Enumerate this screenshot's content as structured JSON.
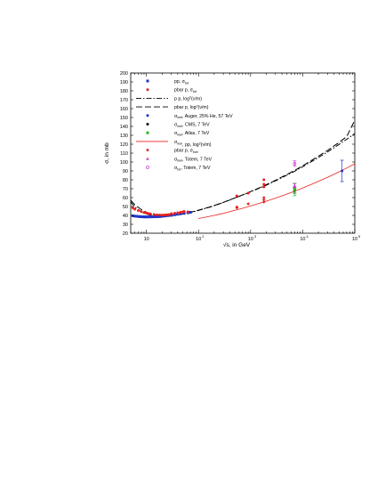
{
  "chart_data": {
    "type": "scatter",
    "xlabel": "√s, in GeV",
    "ylabel": "σ, in mb",
    "x_scale": "log",
    "xlim": [
      5,
      100000
    ],
    "ylim": [
      20,
      200
    ],
    "x_ticks": [
      {
        "value": 10,
        "label": "10"
      },
      {
        "value": 100,
        "label": "10"
      },
      {
        "value": 1000,
        "label": "10"
      },
      {
        "value": 10000,
        "label": "10"
      },
      {
        "value": 100000,
        "label": "10"
      }
    ],
    "x_tick_exponents": [
      "",
      "2",
      "3",
      "4",
      "5"
    ],
    "y_ticks": [
      20,
      30,
      40,
      50,
      60,
      70,
      80,
      90,
      100,
      110,
      120,
      130,
      140,
      150,
      160,
      170,
      180,
      190,
      200
    ],
    "grid": false,
    "legend_position": "top-left",
    "legend": [
      {
        "label": "pp,      σ",
        "sub": "tot",
        "color": "#1f35c9",
        "marker": "square"
      },
      {
        "label": "pbar p, σ",
        "sub": "tot",
        "color": "#e8201c",
        "marker": "circle"
      },
      {
        "label": "p p,      log",
        "sup": "2",
        "tail": "(ν/m)",
        "color": "#000000",
        "marker": "dashdot"
      },
      {
        "label": "pbar p, log",
        "sup": "2",
        "tail": "(ν/m)",
        "color": "#000000",
        "marker": "dash"
      },
      {
        "label": "σ",
        "sub": "inel",
        "tail": ", Auger, 25% He, 57 TeV",
        "color": "#1f35c9",
        "marker": "circle"
      },
      {
        "label": "σ",
        "sub": "inel",
        "tail": ", CMS,   7 TeV",
        "color": "#000000",
        "marker": "circle"
      },
      {
        "label": "σ",
        "sub": "inel",
        "tail": ", Atlas,   7 TeV",
        "color": "#22bb22",
        "marker": "square"
      },
      {
        "label": "σ",
        "sub": "inel",
        "tail": ", pp, log",
        "sup": "2",
        "tail2": "(ν/m)",
        "color": "#e8201c",
        "marker": "line"
      },
      {
        "label": "pbar p, σ",
        "sub": "inel",
        "color": "#e8201c",
        "marker": "diamond"
      },
      {
        "label": "σ",
        "sub": "inel",
        "tail": ", Totem, 7 TeV",
        "color": "#d13ad1",
        "marker": "triangle"
      },
      {
        "label": "σ",
        "sub": "tot",
        "tail": ", Totem, 7 TeV",
        "color": "#d13ad1",
        "marker": "circle-open"
      }
    ],
    "series": [
      {
        "name": "pp, σtot",
        "color": "#1f35c9",
        "marker": "square",
        "x": [
          5.5,
          6,
          6.5,
          7,
          7.5,
          8,
          8.5,
          9,
          9.5,
          10,
          11,
          12,
          13,
          14,
          15,
          16,
          17,
          18,
          19,
          20,
          21.7,
          23.5,
          26,
          27.4,
          30.6,
          35,
          38.5,
          44.7,
          52.8,
          62.5,
          70
        ],
        "y": [
          39.5,
          39.2,
          39.0,
          38.8,
          38.6,
          38.5,
          38.4,
          38.4,
          38.3,
          38.3,
          38.3,
          38.4,
          38.4,
          38.5,
          38.5,
          38.6,
          38.7,
          38.8,
          38.9,
          39.0,
          39.3,
          39.5,
          39.8,
          40.0,
          40.1,
          40.8,
          41.2,
          41.7,
          42.3,
          43.0,
          43.5
        ]
      },
      {
        "name": "pbar p, σtot",
        "color": "#e8201c",
        "marker": "circle",
        "x": [
          5.5,
          6,
          7,
          8,
          9,
          10,
          11,
          12,
          14,
          16,
          18,
          20,
          22,
          24,
          26,
          28,
          30.4,
          35,
          40,
          45,
          50,
          53,
          62.5,
          546,
          900,
          1800,
          1800,
          1800
        ],
        "y": [
          48.5,
          47.0,
          45.5,
          44.2,
          43.3,
          42.6,
          42.0,
          41.6,
          41.0,
          40.6,
          40.5,
          40.4,
          40.5,
          40.6,
          40.8,
          41.0,
          42.0,
          42.5,
          43.0,
          43.5,
          44.0,
          44.5,
          44.0,
          62.0,
          65.0,
          72.0,
          75.0,
          80.0
        ]
      },
      {
        "name": "pbar p, σinel",
        "color": "#e8201c",
        "marker": "diamond",
        "x": [
          546,
          546,
          900,
          1800,
          1800,
          1800
        ],
        "y": [
          48.5,
          49.5,
          53.0,
          57.5,
          60.0,
          55.0
        ]
      },
      {
        "name": "σinel, Auger, 25% He, 57 TeV",
        "color": "#1f35c9",
        "marker": "circle",
        "x": [
          57000
        ],
        "y": [
          90.0
        ],
        "yerr": [
          12
        ]
      },
      {
        "name": "σinel, CMS, 7 TeV",
        "color": "#000000",
        "marker": "circle",
        "x": [
          7000
        ],
        "y": [
          68.0
        ],
        "yerr": [
          3
        ]
      },
      {
        "name": "σinel, Atlas, 7 TeV",
        "color": "#22bb22",
        "marker": "square",
        "x": [
          7000
        ],
        "y": [
          69.1
        ],
        "yerr": [
          7
        ]
      },
      {
        "name": "σinel, Totem, 7 TeV",
        "color": "#d13ad1",
        "marker": "triangle",
        "x": [
          7000
        ],
        "y": [
          73.5
        ],
        "yerr": [
          2
        ]
      },
      {
        "name": "σtot, Totem, 7 TeV",
        "color": "#d13ad1",
        "marker": "circle-open",
        "x": [
          7000
        ],
        "y": [
          98.3
        ],
        "yerr": [
          3
        ]
      }
    ],
    "curves": [
      {
        "name": "p p, log2(ν/m)",
        "color": "#000000",
        "style": "dashdot",
        "x": [
          5,
          6,
          7,
          8,
          10,
          12,
          15,
          20,
          25,
          30,
          40,
          50,
          70,
          100,
          150,
          200,
          300,
          500,
          700,
          1000,
          1500,
          2000,
          3000,
          5000,
          7000,
          10000,
          20000,
          30000,
          50000,
          70000,
          100000
        ],
        "y": [
          55.0,
          49.5,
          46.5,
          44.0,
          41.5,
          40.2,
          39.3,
          39.0,
          39.2,
          39.6,
          40.6,
          41.6,
          43.3,
          45.6,
          48.6,
          50.9,
          54.5,
          59.5,
          62.8,
          66.5,
          70.8,
          74.0,
          78.8,
          85.3,
          89.6,
          94.7,
          105.0,
          111.3,
          119.8,
          125.5,
          132.0
        ]
      },
      {
        "name": "pbar p, log2(ν/m)",
        "color": "#000000",
        "style": "dash",
        "x": [
          5,
          6,
          7,
          8,
          10,
          12,
          15,
          20,
          25,
          30,
          40,
          50,
          70,
          100,
          150,
          200,
          300,
          500,
          700,
          1000,
          1500,
          2000,
          3000,
          5000,
          7000,
          10000,
          20000,
          30000,
          50000,
          70000,
          100000
        ],
        "y": [
          57.0,
          52.0,
          49.0,
          46.5,
          43.5,
          42.0,
          40.8,
          40.2,
          40.2,
          40.4,
          41.1,
          41.9,
          43.5,
          45.9,
          48.8,
          51.1,
          54.7,
          59.7,
          63.0,
          66.8,
          71.2,
          74.5,
          79.4,
          86.1,
          90.5,
          95.8,
          106.5,
          113.0,
          122.0,
          128.5,
          147.0
        ]
      },
      {
        "name": "σinel, pp, log2(ν/m)",
        "color": "#e8201c",
        "style": "solid",
        "x": [
          100,
          150,
          200,
          300,
          500,
          700,
          1000,
          1500,
          2000,
          3000,
          5000,
          7000,
          10000,
          20000,
          30000,
          50000,
          70000,
          100000
        ],
        "y": [
          36.5,
          38.5,
          40.0,
          42.3,
          45.7,
          48.0,
          50.6,
          53.7,
          56.0,
          59.4,
          64.0,
          67.2,
          70.8,
          78.2,
          82.8,
          89.0,
          93.2,
          98.0
        ]
      }
    ]
  }
}
